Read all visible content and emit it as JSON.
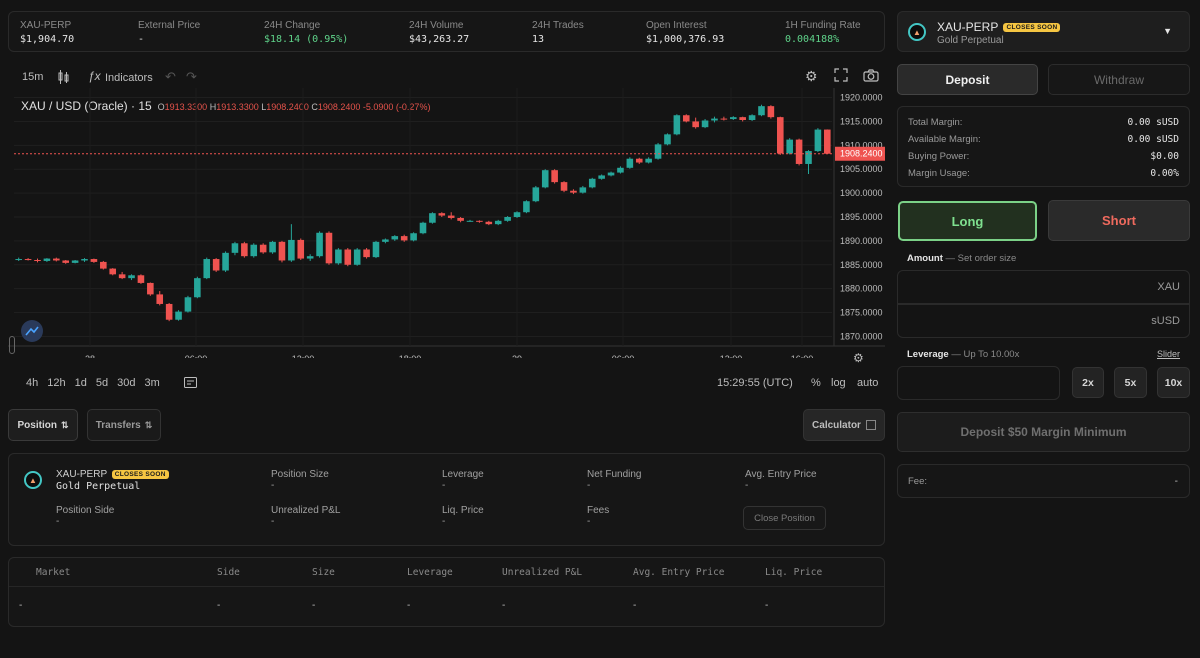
{
  "stats": [
    {
      "label": "XAU-PERP",
      "value": "$1,904.70",
      "tone": ""
    },
    {
      "label": "External Price",
      "value": "-",
      "tone": ""
    },
    {
      "label": "24H Change",
      "value": "$18.14 (0.95%)",
      "tone": "green"
    },
    {
      "label": "24H Volume",
      "value": "$43,263.27",
      "tone": ""
    },
    {
      "label": "24H Trades",
      "value": "13",
      "tone": ""
    },
    {
      "label": "Open Interest",
      "value": "$1,000,376.93",
      "tone": ""
    },
    {
      "label": "1H Funding Rate",
      "value": "0.004188%",
      "tone": "green"
    }
  ],
  "market": {
    "symbol": "XAU-PERP",
    "badge": "CLOSES SOON",
    "name": "Gold Perpetual",
    "dropdown_icon": "caret-down-icon"
  },
  "chart_toolbar": {
    "interval": "15m",
    "indicators_label": "Indicators"
  },
  "legend": {
    "title": "XAU / USD (Oracle) · 15",
    "o_label": "O",
    "o": "1913.3300",
    "h_label": "H",
    "h": "1913.3300",
    "l_label": "L",
    "l": "1908.2400",
    "c_label": "C",
    "c": "1908.2400",
    "change": "-5.0900 (-0.27%)"
  },
  "chart_data": {
    "type": "candlestick",
    "price_axis": [
      "1920.0000",
      "1915.0000",
      "1910.0000",
      "1905.0000",
      "1900.0000",
      "1895.0000",
      "1890.0000",
      "1885.0000",
      "1880.0000",
      "1875.0000",
      "1870.0000"
    ],
    "current_price_label": "1908.2400",
    "current_price": 1908.24,
    "time_axis": [
      "28",
      "06:00",
      "12:00",
      "18:00",
      "29",
      "06:00",
      "12:00",
      "16:00"
    ],
    "ylim": [
      1868,
      1922
    ],
    "colors": {
      "up": "#26a69a",
      "down": "#ef5350"
    },
    "candles": [
      [
        1886.0,
        1886.5,
        1885.8,
        1886.2
      ],
      [
        1886.2,
        1886.4,
        1885.9,
        1886.0
      ],
      [
        1886.0,
        1886.3,
        1885.5,
        1885.8
      ],
      [
        1885.8,
        1886.4,
        1885.6,
        1886.3
      ],
      [
        1886.3,
        1886.5,
        1885.7,
        1885.9
      ],
      [
        1885.9,
        1886.0,
        1885.2,
        1885.4
      ],
      [
        1885.4,
        1886.0,
        1885.3,
        1885.9
      ],
      [
        1885.9,
        1886.4,
        1885.6,
        1886.2
      ],
      [
        1886.2,
        1886.3,
        1885.4,
        1885.6
      ],
      [
        1885.6,
        1885.8,
        1884.0,
        1884.2
      ],
      [
        1884.2,
        1884.3,
        1882.8,
        1883.0
      ],
      [
        1883.0,
        1883.5,
        1882.0,
        1882.2
      ],
      [
        1882.2,
        1883.0,
        1881.8,
        1882.8
      ],
      [
        1882.8,
        1883.0,
        1881.0,
        1881.2
      ],
      [
        1881.2,
        1881.3,
        1878.5,
        1878.8
      ],
      [
        1878.8,
        1879.5,
        1876.5,
        1876.8
      ],
      [
        1876.8,
        1877.0,
        1873.2,
        1873.5
      ],
      [
        1873.5,
        1875.5,
        1873.3,
        1875.2
      ],
      [
        1875.2,
        1878.5,
        1875.0,
        1878.2
      ],
      [
        1878.2,
        1882.5,
        1878.0,
        1882.2
      ],
      [
        1882.2,
        1886.5,
        1882.0,
        1886.2
      ],
      [
        1886.2,
        1886.4,
        1883.5,
        1883.8
      ],
      [
        1883.8,
        1887.8,
        1883.5,
        1887.5
      ],
      [
        1887.5,
        1889.8,
        1887.0,
        1889.5
      ],
      [
        1889.5,
        1889.8,
        1886.5,
        1886.8
      ],
      [
        1886.8,
        1889.5,
        1886.5,
        1889.2
      ],
      [
        1889.2,
        1889.5,
        1887.3,
        1887.6
      ],
      [
        1887.6,
        1890.0,
        1887.3,
        1889.8
      ],
      [
        1889.8,
        1890.0,
        1885.5,
        1885.9
      ],
      [
        1885.9,
        1893.5,
        1885.6,
        1890.2
      ],
      [
        1890.2,
        1890.5,
        1886.0,
        1886.3
      ],
      [
        1886.3,
        1887.2,
        1885.8,
        1886.8
      ],
      [
        1886.8,
        1892.0,
        1886.5,
        1891.7
      ],
      [
        1891.7,
        1892.0,
        1885.0,
        1885.3
      ],
      [
        1885.3,
        1888.5,
        1885.0,
        1888.2
      ],
      [
        1888.2,
        1888.5,
        1884.7,
        1885.0
      ],
      [
        1885.0,
        1888.5,
        1884.8,
        1888.2
      ],
      [
        1888.2,
        1888.5,
        1886.3,
        1886.6
      ],
      [
        1886.6,
        1890.0,
        1886.4,
        1889.8
      ],
      [
        1889.8,
        1890.5,
        1889.5,
        1890.3
      ],
      [
        1890.3,
        1891.2,
        1890.0,
        1891.0
      ],
      [
        1891.0,
        1891.3,
        1889.8,
        1890.1
      ],
      [
        1890.1,
        1891.8,
        1889.9,
        1891.6
      ],
      [
        1891.6,
        1894.0,
        1891.4,
        1893.8
      ],
      [
        1893.8,
        1896.0,
        1893.6,
        1895.8
      ],
      [
        1895.8,
        1896.0,
        1895.0,
        1895.3
      ],
      [
        1895.3,
        1896.0,
        1894.5,
        1894.8
      ],
      [
        1894.8,
        1895.0,
        1893.9,
        1894.2
      ],
      [
        1894.2,
        1894.4,
        1894.0,
        1894.2
      ],
      [
        1894.2,
        1894.3,
        1893.8,
        1894.0
      ],
      [
        1894.0,
        1894.2,
        1893.3,
        1893.5
      ],
      [
        1893.5,
        1894.4,
        1893.3,
        1894.2
      ],
      [
        1894.2,
        1895.2,
        1894.0,
        1895.0
      ],
      [
        1895.0,
        1896.2,
        1894.8,
        1896.0
      ],
      [
        1896.0,
        1898.5,
        1895.8,
        1898.3
      ],
      [
        1898.3,
        1901.5,
        1898.1,
        1901.2
      ],
      [
        1901.2,
        1905.0,
        1901.0,
        1904.8
      ],
      [
        1904.8,
        1905.0,
        1902.0,
        1902.3
      ],
      [
        1902.3,
        1902.5,
        1900.2,
        1900.5
      ],
      [
        1900.5,
        1900.8,
        1899.8,
        1900.1
      ],
      [
        1900.1,
        1901.5,
        1899.9,
        1901.2
      ],
      [
        1901.2,
        1903.2,
        1901.0,
        1903.0
      ],
      [
        1903.0,
        1903.9,
        1902.8,
        1903.7
      ],
      [
        1903.7,
        1904.5,
        1903.5,
        1904.3
      ],
      [
        1904.3,
        1905.6,
        1904.1,
        1905.3
      ],
      [
        1905.3,
        1907.5,
        1905.1,
        1907.2
      ],
      [
        1907.2,
        1907.4,
        1906.1,
        1906.4
      ],
      [
        1906.4,
        1907.5,
        1906.2,
        1907.2
      ],
      [
        1907.2,
        1910.5,
        1907.0,
        1910.2
      ],
      [
        1910.2,
        1912.5,
        1910.0,
        1912.3
      ],
      [
        1912.3,
        1916.5,
        1912.1,
        1916.3
      ],
      [
        1916.3,
        1916.5,
        1914.8,
        1915.0
      ],
      [
        1915.0,
        1915.8,
        1913.5,
        1913.8
      ],
      [
        1913.8,
        1915.5,
        1913.6,
        1915.2
      ],
      [
        1915.2,
        1916.0,
        1914.8,
        1915.6
      ],
      [
        1915.6,
        1916.0,
        1915.2,
        1915.5
      ],
      [
        1915.5,
        1916.1,
        1915.3,
        1915.9
      ],
      [
        1915.9,
        1916.0,
        1915.0,
        1915.3
      ],
      [
        1915.3,
        1916.5,
        1915.1,
        1916.3
      ],
      [
        1916.3,
        1918.5,
        1916.1,
        1918.2
      ],
      [
        1918.2,
        1918.4,
        1915.6,
        1915.9
      ],
      [
        1915.9,
        1916.0,
        1908.0,
        1908.3
      ],
      [
        1908.3,
        1911.5,
        1908.1,
        1911.2
      ],
      [
        1911.2,
        1911.4,
        1905.8,
        1906.1
      ],
      [
        1906.1,
        1909.0,
        1904.0,
        1908.8
      ],
      [
        1908.8,
        1913.6,
        1908.6,
        1913.3
      ],
      [
        1913.3,
        1913.33,
        1908.24,
        1908.24
      ]
    ]
  },
  "chart_footer": {
    "ranges": [
      "4h",
      "12h",
      "1d",
      "5d",
      "30d",
      "3m"
    ],
    "time": "15:29:55 (UTC)",
    "opts": [
      "%",
      "log",
      "auto"
    ]
  },
  "tabs": {
    "position": "Position",
    "transfers": "Transfers",
    "calculator": "Calculator"
  },
  "position_card": {
    "fields": [
      {
        "label": "Position Size",
        "value": "-"
      },
      {
        "label": "Leverage",
        "value": "-"
      },
      {
        "label": "Net Funding",
        "value": "-"
      },
      {
        "label": "Avg. Entry Price",
        "value": "-"
      },
      {
        "label": "Position Side",
        "value": "-"
      },
      {
        "label": "Unrealized P&L",
        "value": "-"
      },
      {
        "label": "Liq. Price",
        "value": "-"
      },
      {
        "label": "Fees",
        "value": "-"
      }
    ],
    "close_label": "Close Position"
  },
  "table": {
    "headers": [
      "Market",
      "Side",
      "Size",
      "Leverage",
      "Unrealized P&L",
      "Avg. Entry Price",
      "Liq. Price"
    ],
    "row": [
      "-",
      "-",
      "-",
      "-",
      "-",
      "-",
      "-"
    ]
  },
  "order": {
    "deposit": "Deposit",
    "withdraw": "Withdraw",
    "margin": [
      {
        "label": "Total Margin:",
        "value": "0.00 sUSD"
      },
      {
        "label": "Available Margin:",
        "value": "0.00 sUSD"
      },
      {
        "label": "Buying Power:",
        "value": "$0.00"
      },
      {
        "label": "Margin Usage:",
        "value": "0.00%"
      }
    ],
    "long": "Long",
    "short": "Short",
    "amount_label": "Amount",
    "amount_hint": "— Set order size",
    "unit1": "XAU",
    "unit2": "sUSD",
    "leverage_label": "Leverage",
    "leverage_hint": "— Up To 10.00x",
    "slider_label": "Slider",
    "lev_opts": [
      "2x",
      "5x",
      "10x"
    ],
    "submit": "Deposit $50 Margin Minimum",
    "fee_label": "Fee:",
    "fee_value": "-"
  }
}
